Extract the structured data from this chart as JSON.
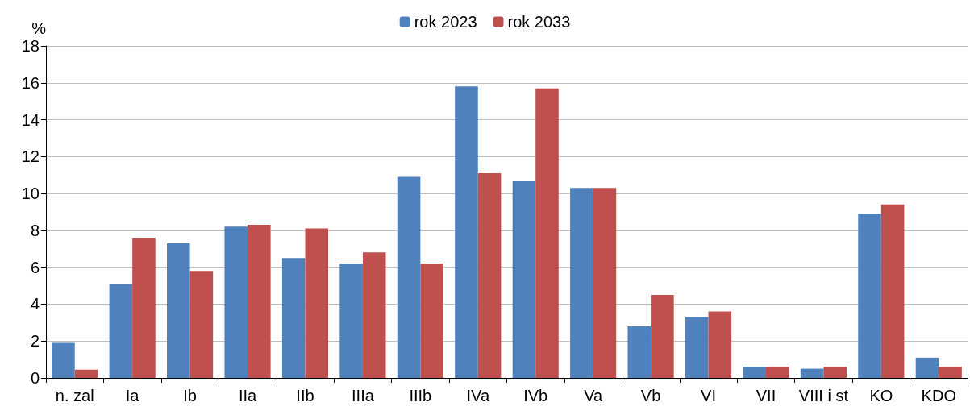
{
  "chart_data": {
    "type": "bar",
    "ylabel": "%",
    "categories": [
      "n. zal",
      "Ia",
      "Ib",
      "IIa",
      "IIb",
      "IIIa",
      "IIIb",
      "IVa",
      "IVb",
      "Va",
      "Vb",
      "VI",
      "VII",
      "VIII i st",
      "KO",
      "KDO"
    ],
    "series": [
      {
        "name": "rok 2023",
        "color": "#4f81bd",
        "values": [
          1.9,
          5.1,
          7.3,
          8.2,
          6.5,
          6.2,
          10.9,
          15.8,
          10.7,
          10.3,
          2.8,
          3.3,
          0.6,
          0.5,
          8.9,
          1.1
        ]
      },
      {
        "name": "rok 2033",
        "color": "#c0504d",
        "values": [
          0.45,
          7.6,
          5.8,
          8.3,
          8.1,
          6.8,
          6.2,
          11.1,
          15.7,
          10.3,
          4.5,
          3.6,
          0.6,
          0.6,
          9.4,
          0.6
        ]
      }
    ],
    "ylim": [
      0,
      18
    ],
    "yticks": [
      0,
      2,
      4,
      6,
      8,
      10,
      12,
      14,
      16,
      18
    ],
    "grid": "y",
    "legend": "top"
  }
}
